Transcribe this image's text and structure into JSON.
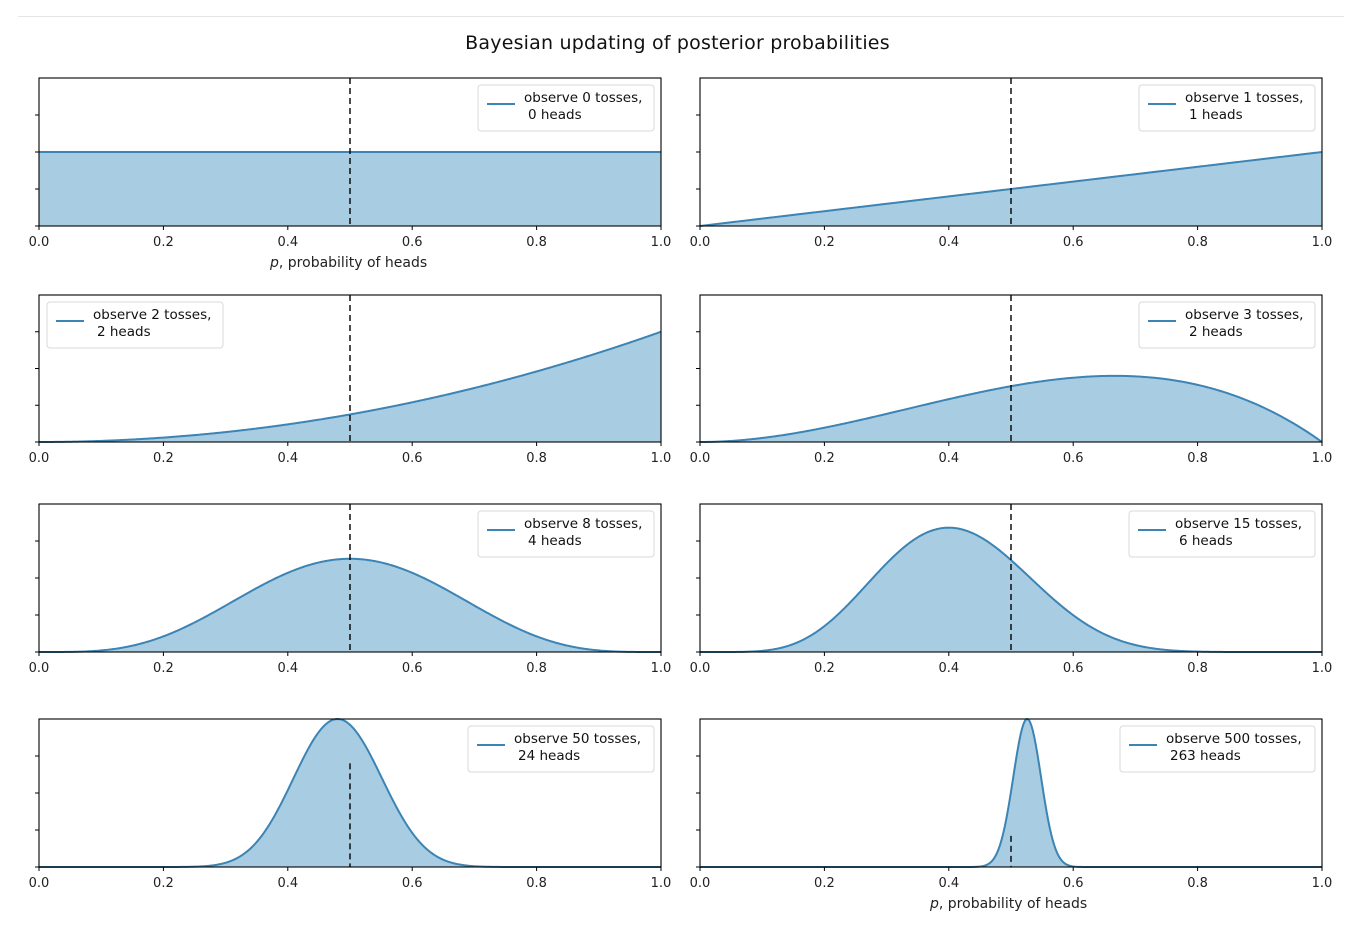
{
  "figure": {
    "title": "Bayesian updating of posterior probabilities",
    "colors": {
      "line": "#3b84b4",
      "fill": "#a8cce2",
      "dashed": "#000000",
      "axis": "#000000"
    }
  },
  "chart_data": [
    {
      "type": "area",
      "trials": 0,
      "heads": 0,
      "legend": [
        "observe 0 tosses,",
        "0 heads"
      ],
      "legend_loc": "upper right",
      "xlim": [
        0,
        1
      ],
      "xticks": [
        "0.0",
        "0.2",
        "0.4",
        "0.6",
        "0.8",
        "1.0"
      ],
      "xlabel": "p, probability of heads",
      "vline_x": 0.5
    },
    {
      "type": "area",
      "trials": 1,
      "heads": 1,
      "legend": [
        "observe 1 tosses,",
        "1 heads"
      ],
      "legend_loc": "upper right",
      "xlim": [
        0,
        1
      ],
      "xticks": [
        "0.0",
        "0.2",
        "0.4",
        "0.6",
        "0.8",
        "1.0"
      ],
      "xlabel": "",
      "vline_x": 0.5
    },
    {
      "type": "area",
      "trials": 2,
      "heads": 2,
      "legend": [
        "observe 2 tosses,",
        "2 heads"
      ],
      "legend_loc": "upper left",
      "xlim": [
        0,
        1
      ],
      "xticks": [
        "0.0",
        "0.2",
        "0.4",
        "0.6",
        "0.8",
        "1.0"
      ],
      "xlabel": "",
      "vline_x": 0.5
    },
    {
      "type": "area",
      "trials": 3,
      "heads": 2,
      "legend": [
        "observe 3 tosses,",
        "2 heads"
      ],
      "legend_loc": "upper right",
      "xlim": [
        0,
        1
      ],
      "xticks": [
        "0.0",
        "0.2",
        "0.4",
        "0.6",
        "0.8",
        "1.0"
      ],
      "xlabel": "",
      "vline_x": 0.5
    },
    {
      "type": "area",
      "trials": 8,
      "heads": 4,
      "legend": [
        "observe 8 tosses,",
        "4 heads"
      ],
      "legend_loc": "upper right",
      "xlim": [
        0,
        1
      ],
      "xticks": [
        "0.0",
        "0.2",
        "0.4",
        "0.6",
        "0.8",
        "1.0"
      ],
      "xlabel": "",
      "vline_x": 0.5
    },
    {
      "type": "area",
      "trials": 15,
      "heads": 6,
      "legend": [
        "observe 15 tosses,",
        "6 heads"
      ],
      "legend_loc": "upper right",
      "xlim": [
        0,
        1
      ],
      "xticks": [
        "0.0",
        "0.2",
        "0.4",
        "0.6",
        "0.8",
        "1.0"
      ],
      "xlabel": "",
      "vline_x": 0.5
    },
    {
      "type": "area",
      "trials": 50,
      "heads": 24,
      "legend": [
        "observe 50 tosses,",
        "24 heads"
      ],
      "legend_loc": "upper right",
      "xlim": [
        0,
        1
      ],
      "xticks": [
        "0.0",
        "0.2",
        "0.4",
        "0.6",
        "0.8",
        "1.0"
      ],
      "xlabel": "",
      "vline_x": 0.5
    },
    {
      "type": "area",
      "trials": 500,
      "heads": 263,
      "legend": [
        "observe 500 tosses,",
        "263 heads"
      ],
      "legend_loc": "upper right",
      "xlim": [
        0,
        1
      ],
      "xticks": [
        "0.0",
        "0.2",
        "0.4",
        "0.6",
        "0.8",
        "1.0"
      ],
      "xlabel": "p, probability of heads",
      "vline_x": 0.5
    }
  ]
}
